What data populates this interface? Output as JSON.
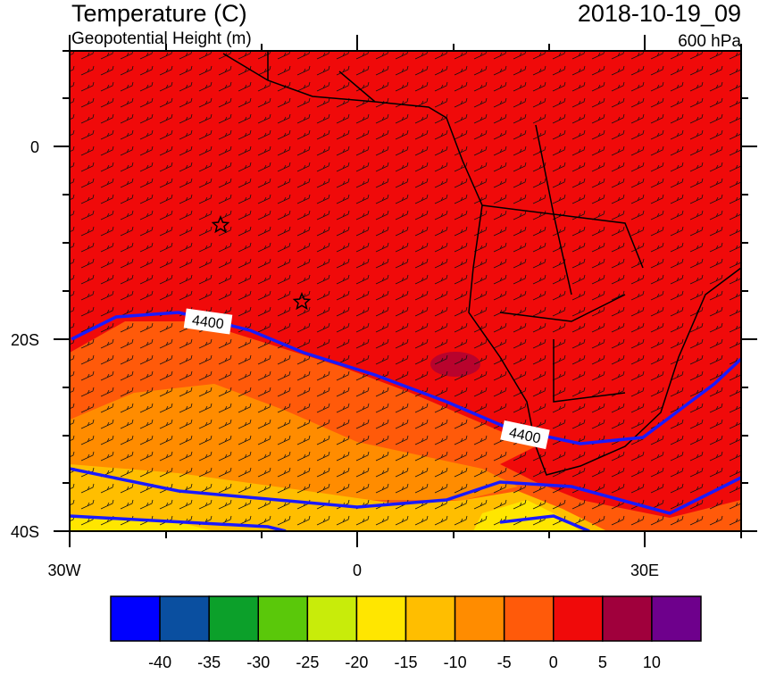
{
  "header": {
    "title": "Temperature (C)",
    "subtitle": "Geopotential Height (m)",
    "valid_time": "2018-10-19_09",
    "level": "600 hPa"
  },
  "map": {
    "lat_labels": [
      "0",
      "20S",
      "40S"
    ],
    "lon_labels": [
      "30W",
      "0",
      "30E"
    ],
    "contour_labels": [
      "4400",
      "4400"
    ]
  },
  "colorbar": {
    "colors": [
      "#0000ff",
      "#0a4fa0",
      "#0ca02a",
      "#5ac80a",
      "#c8ec0a",
      "#ffe600",
      "#ffbe00",
      "#ff8c00",
      "#ff5a0a",
      "#f00a0a",
      "#a0003c",
      "#6e008c"
    ],
    "labels": [
      "-40",
      "-35",
      "-30",
      "-25",
      "-20",
      "-15",
      "-10",
      "-5",
      "0",
      "5",
      "10"
    ]
  }
}
